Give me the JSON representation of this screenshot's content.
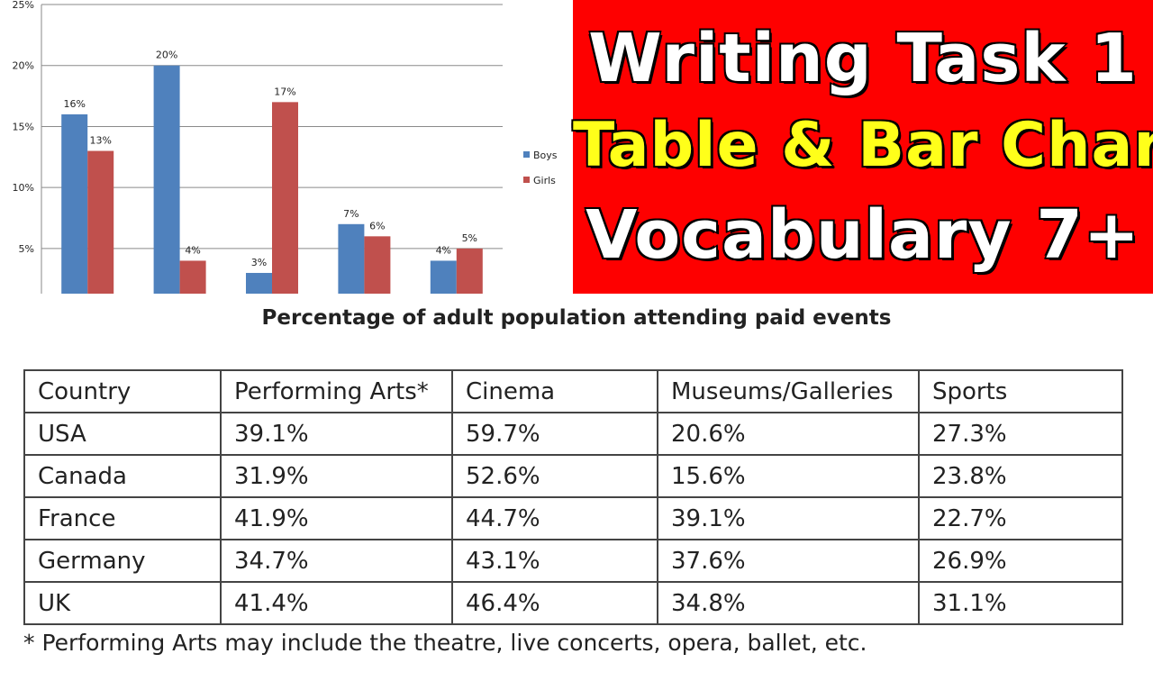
{
  "chart_data": {
    "type": "bar",
    "categories": [
      "",
      "",
      "",
      "",
      ""
    ],
    "series": [
      {
        "name": "Boys",
        "color": "#4f81bd",
        "values": [
          16,
          20,
          3,
          7,
          4
        ],
        "labels": [
          "16%",
          "20%",
          "3%",
          "7%",
          "4%"
        ]
      },
      {
        "name": "Girls",
        "color": "#c0504d",
        "values": [
          13,
          4,
          17,
          6,
          5
        ],
        "labels": [
          "13%",
          "4%",
          "17%",
          "6%",
          "5%"
        ]
      }
    ],
    "yticks": [
      {
        "value": 5,
        "label": "5%"
      },
      {
        "value": 10,
        "label": "10%"
      },
      {
        "value": 15,
        "label": "15%"
      },
      {
        "value": 20,
        "label": "20%"
      },
      {
        "value": 25,
        "label": "25%"
      }
    ],
    "ylim": [
      1.3,
      25
    ],
    "grid": true,
    "legend_position": "right",
    "title": "",
    "xlabel": "",
    "ylabel": ""
  },
  "banner": {
    "line1": "Writing Task 1",
    "line2": "Table & Bar Chart",
    "line3": "Vocabulary 7+",
    "background_color": "#fe0000",
    "highlight_color": "#ffff1a"
  },
  "table": {
    "title": "Percentage of adult population attending paid events",
    "headers": [
      "Country",
      "Performing Arts*",
      "Cinema",
      "Museums/Galleries",
      "Sports"
    ],
    "rows": [
      [
        "USA",
        "39.1%",
        "59.7%",
        "20.6%",
        "27.3%"
      ],
      [
        "Canada",
        "31.9%",
        "52.6%",
        "15.6%",
        "23.8%"
      ],
      [
        "France",
        "41.9%",
        "44.7%",
        "39.1%",
        "22.7%"
      ],
      [
        "Germany",
        "34.7%",
        "43.1%",
        "37.6%",
        "26.9%"
      ],
      [
        "UK",
        "41.4%",
        "46.4%",
        "34.8%",
        "31.1%"
      ]
    ],
    "footnote": "* Performing Arts may include the theatre, live concerts, opera, ballet, etc."
  }
}
